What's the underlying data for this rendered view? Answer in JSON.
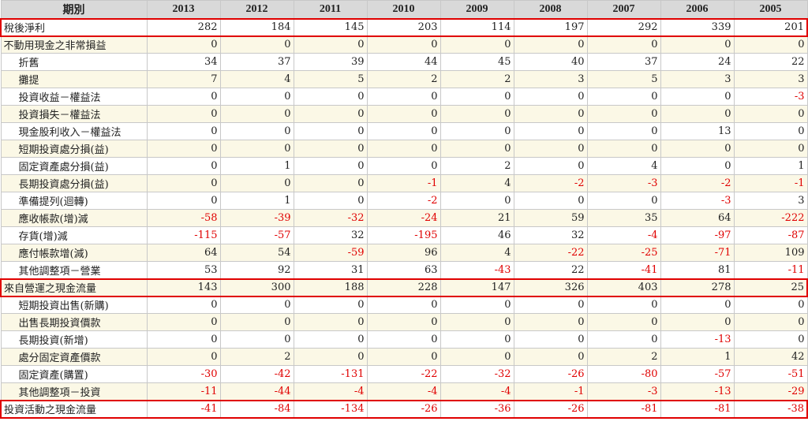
{
  "header": {
    "period_label": "期別",
    "years": [
      "2013",
      "2012",
      "2011",
      "2010",
      "2009",
      "2008",
      "2007",
      "2006",
      "2005"
    ]
  },
  "rows": [
    {
      "label": "稅後淨利",
      "indent": false,
      "highlight": true,
      "values": [
        "282",
        "184",
        "145",
        "203",
        "114",
        "197",
        "292",
        "339",
        "201"
      ]
    },
    {
      "label": "不動用現金之非常損益",
      "indent": false,
      "highlight": false,
      "values": [
        "0",
        "0",
        "0",
        "0",
        "0",
        "0",
        "0",
        "0",
        "0"
      ]
    },
    {
      "label": "折舊",
      "indent": true,
      "highlight": false,
      "values": [
        "34",
        "37",
        "39",
        "44",
        "45",
        "40",
        "37",
        "24",
        "22"
      ]
    },
    {
      "label": "攤提",
      "indent": true,
      "highlight": false,
      "values": [
        "7",
        "4",
        "5",
        "2",
        "2",
        "3",
        "5",
        "3",
        "3"
      ]
    },
    {
      "label": "投資收益－權益法",
      "indent": true,
      "highlight": false,
      "values": [
        "0",
        "0",
        "0",
        "0",
        "0",
        "0",
        "0",
        "0",
        "-3"
      ]
    },
    {
      "label": "投資損失－權益法",
      "indent": true,
      "highlight": false,
      "values": [
        "0",
        "0",
        "0",
        "0",
        "0",
        "0",
        "0",
        "0",
        "0"
      ]
    },
    {
      "label": "現金股利收入－權益法",
      "indent": true,
      "highlight": false,
      "values": [
        "0",
        "0",
        "0",
        "0",
        "0",
        "0",
        "0",
        "13",
        "0"
      ]
    },
    {
      "label": "短期投資處分損(益)",
      "indent": true,
      "highlight": false,
      "values": [
        "0",
        "0",
        "0",
        "0",
        "0",
        "0",
        "0",
        "0",
        "0"
      ]
    },
    {
      "label": "固定資產處分損(益)",
      "indent": true,
      "highlight": false,
      "values": [
        "0",
        "1",
        "0",
        "0",
        "2",
        "0",
        "4",
        "0",
        "1"
      ]
    },
    {
      "label": "長期投資處分損(益)",
      "indent": true,
      "highlight": false,
      "values": [
        "0",
        "0",
        "0",
        "-1",
        "4",
        "-2",
        "-3",
        "-2",
        "-1"
      ]
    },
    {
      "label": "準備提列(迴轉)",
      "indent": true,
      "highlight": false,
      "values": [
        "0",
        "1",
        "0",
        "-2",
        "0",
        "0",
        "0",
        "-3",
        "3"
      ]
    },
    {
      "label": "應收帳款(增)減",
      "indent": true,
      "highlight": false,
      "values": [
        "-58",
        "-39",
        "-32",
        "-24",
        "21",
        "59",
        "35",
        "64",
        "-222"
      ]
    },
    {
      "label": "存貨(增)減",
      "indent": true,
      "highlight": false,
      "values": [
        "-115",
        "-57",
        "32",
        "-195",
        "46",
        "32",
        "-4",
        "-97",
        "-87"
      ]
    },
    {
      "label": "應付帳款增(減)",
      "indent": true,
      "highlight": false,
      "values": [
        "64",
        "54",
        "-59",
        "96",
        "4",
        "-22",
        "-25",
        "-71",
        "109"
      ]
    },
    {
      "label": "其他調整項－營業",
      "indent": true,
      "highlight": false,
      "values": [
        "53",
        "92",
        "31",
        "63",
        "-43",
        "22",
        "-41",
        "81",
        "-11"
      ]
    },
    {
      "label": "來自營運之現金流量",
      "indent": false,
      "highlight": true,
      "values": [
        "143",
        "300",
        "188",
        "228",
        "147",
        "326",
        "403",
        "278",
        "25"
      ]
    },
    {
      "label": "短期投資出售(新購)",
      "indent": true,
      "highlight": false,
      "values": [
        "0",
        "0",
        "0",
        "0",
        "0",
        "0",
        "0",
        "0",
        "0"
      ]
    },
    {
      "label": "出售長期投資價款",
      "indent": true,
      "highlight": false,
      "values": [
        "0",
        "0",
        "0",
        "0",
        "0",
        "0",
        "0",
        "0",
        "0"
      ]
    },
    {
      "label": "長期投資(新增)",
      "indent": true,
      "highlight": false,
      "values": [
        "0",
        "0",
        "0",
        "0",
        "0",
        "0",
        "0",
        "-13",
        "0"
      ]
    },
    {
      "label": "處分固定資產價款",
      "indent": true,
      "highlight": false,
      "values": [
        "0",
        "2",
        "0",
        "0",
        "0",
        "0",
        "2",
        "1",
        "42"
      ]
    },
    {
      "label": "固定資產(購置)",
      "indent": true,
      "highlight": false,
      "values": [
        "-30",
        "-42",
        "-131",
        "-22",
        "-32",
        "-26",
        "-80",
        "-57",
        "-51"
      ]
    },
    {
      "label": "其他調整項－投資",
      "indent": true,
      "highlight": false,
      "values": [
        "-11",
        "-44",
        "-4",
        "-4",
        "-4",
        "-1",
        "-3",
        "-13",
        "-29"
      ]
    },
    {
      "label": "投資活動之現金流量",
      "indent": false,
      "highlight": true,
      "values": [
        "-41",
        "-84",
        "-134",
        "-26",
        "-36",
        "-26",
        "-81",
        "-81",
        "-38"
      ]
    }
  ],
  "colors": {
    "header_bg": "#d9d9d9",
    "row_even_bg": "#fbf8e6",
    "row_odd_bg": "#ffffff",
    "negative_text": "#e00000",
    "highlight_border": "#e00000"
  }
}
